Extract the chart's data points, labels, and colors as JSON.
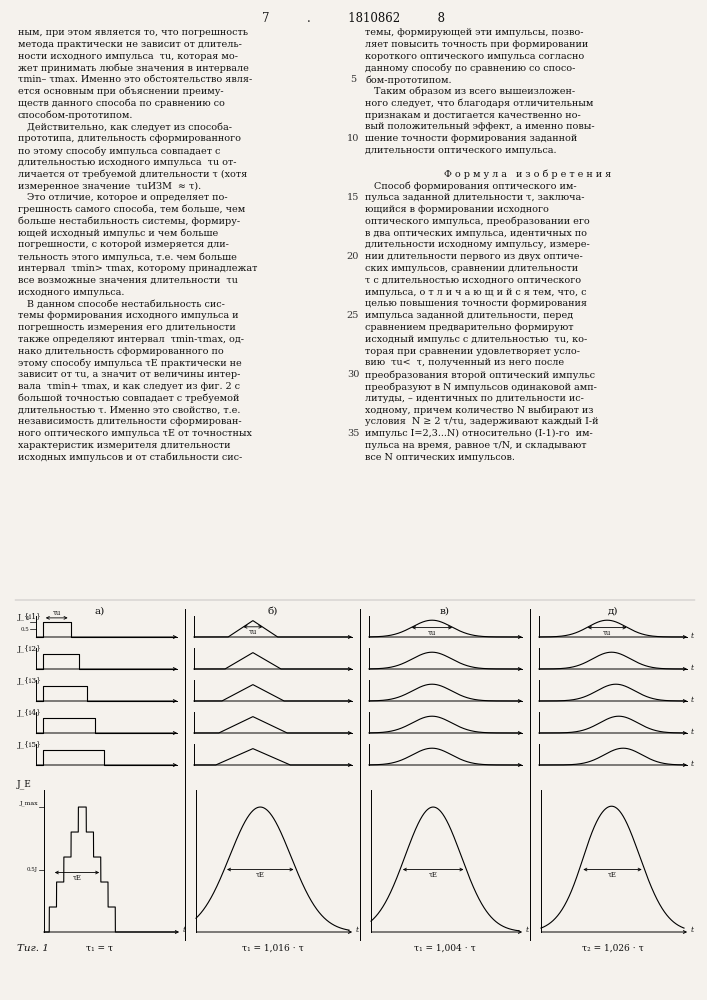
{
  "background_color": "#f5f2ed",
  "header": "7          .          1810862          8",
  "left_text": [
    "ным, при этом является то, что погрешность",
    "метода практически не зависит от длитель-",
    "ности исходного импульса  τu, которая мо-",
    "жет принимать любые значения в интервале",
    "τmin– τmax. Именно это обстоятельство явля-",
    "ется основным при объяснении преиму-",
    "ществ данного способа по сравнению со",
    "способом-прототипом.",
    "   Действительно, как следует из способа-",
    "прототипа, длительность сформированного",
    "по этому способу импульса совпадает с",
    "длительностью исходного импульса  τu от-",
    "личается от требуемой длительности τ (хотя",
    "измеренное значение  τuИЗМ  ≈ τ).",
    "   Это отличие, которое и определяет по-",
    "грешность самого способа, тем больше, чем",
    "больше нестабильность системы, формиру-",
    "ющей исходный импульс и чем больше",
    "погрешности, с которой измеряется дли-",
    "тельность этого импульса, т.е. чем больше",
    "интервал  τmin> τmax, которому принадлежат",
    "все возможные значения длительности  τu",
    "исходного импульса.",
    "   В данном способе нестабильность сис-",
    "темы формирования исходного импульса и",
    "погрешность измерения его длительности",
    "также определяют интервал  τmin-τmax, од-",
    "нако длительность сформированного по",
    "этому способу импульса τE практически не",
    "зависит от τu, а значит от величины интер-",
    "вала  τmin+ τmax, и как следует из фиг. 2 с",
    "большой точностью совпадает с требуемой",
    "длительностью τ. Именно это свойство, т.е.",
    "независимость длительности сформирован-",
    "ного оптического импульса τE от точностных",
    "характеристик измерителя длительности",
    "исходных импульсов и от стабильности сис-"
  ],
  "right_text": [
    "темы, формирующей эти импульсы, позво-",
    "ляет повысить точность при формировании",
    "короткого оптического импульса согласно",
    "данному способу по сравнению со спосо-",
    "бом-прототипом.",
    "   Таким образом из всего вышеизложен-",
    "ного следует, что благодаря отличительным",
    "признакам и достигается качественно но-",
    "вый положительный эффект, а именно повы-",
    "шение точности формирования заданной",
    "длительности оптического импульса.",
    "",
    "Ф о р м у л а   и з о б р е т е н и я",
    "   Способ формирования оптического им-",
    "пульса заданной длительности τ, заключа-",
    "ющийся в формировании исходного",
    "оптического импульса, преобразовании его",
    "в два оптических импульса, идентичных по",
    "длительности исходному импульсу, измере-",
    "нии длительности первого из двух оптиче-",
    "ских импульсов, сравнении длительности",
    "τ с длительностью исходного оптического",
    "импульса, о т л и ч а ю щ и й с я тем, что, с",
    "целью повышения точности формирования",
    "импульса заданной длительности, перед",
    "сравнением предварительно формируют",
    "исходный импульс с длительностью  τu, ко-",
    "торая при сравнении удовлетворяет усло-",
    "вию  τu<  τ, полученный из него после",
    "преобразования второй оптический импульс",
    "преобразуют в N импульсов одинаковой амп-",
    "литуды, – идентичных по длительности ис-",
    "ходному, причем количество N выбирают из",
    "условия  N ≥ 2 τ/τu, задерживают каждый I-й",
    "импульс I=2,3...N) относительно (I-1)-го  им-",
    "пульса на время, равное τ/N, и складывают",
    "все N оптических импульсов."
  ],
  "line_numbers": [
    5,
    10,
    15,
    20,
    25,
    30,
    35
  ],
  "col_labels": [
    "a)",
    "б)",
    "в)",
    "д)"
  ],
  "row_labels": [
    "J_{i1}",
    "J_{i2}",
    "J_{i3}",
    "J_{i4}",
    "J_{i5}"
  ],
  "bottom_row_label": "J_E",
  "fig_caption": "Τиг. 1",
  "bottom_labels": [
    "τ₁ = τ",
    "τ₁ = 1,016 ⋅ τ",
    "τ₁ = 1,004 ⋅ τ",
    "τ₂ = 1,026 ⋅ τ"
  ]
}
